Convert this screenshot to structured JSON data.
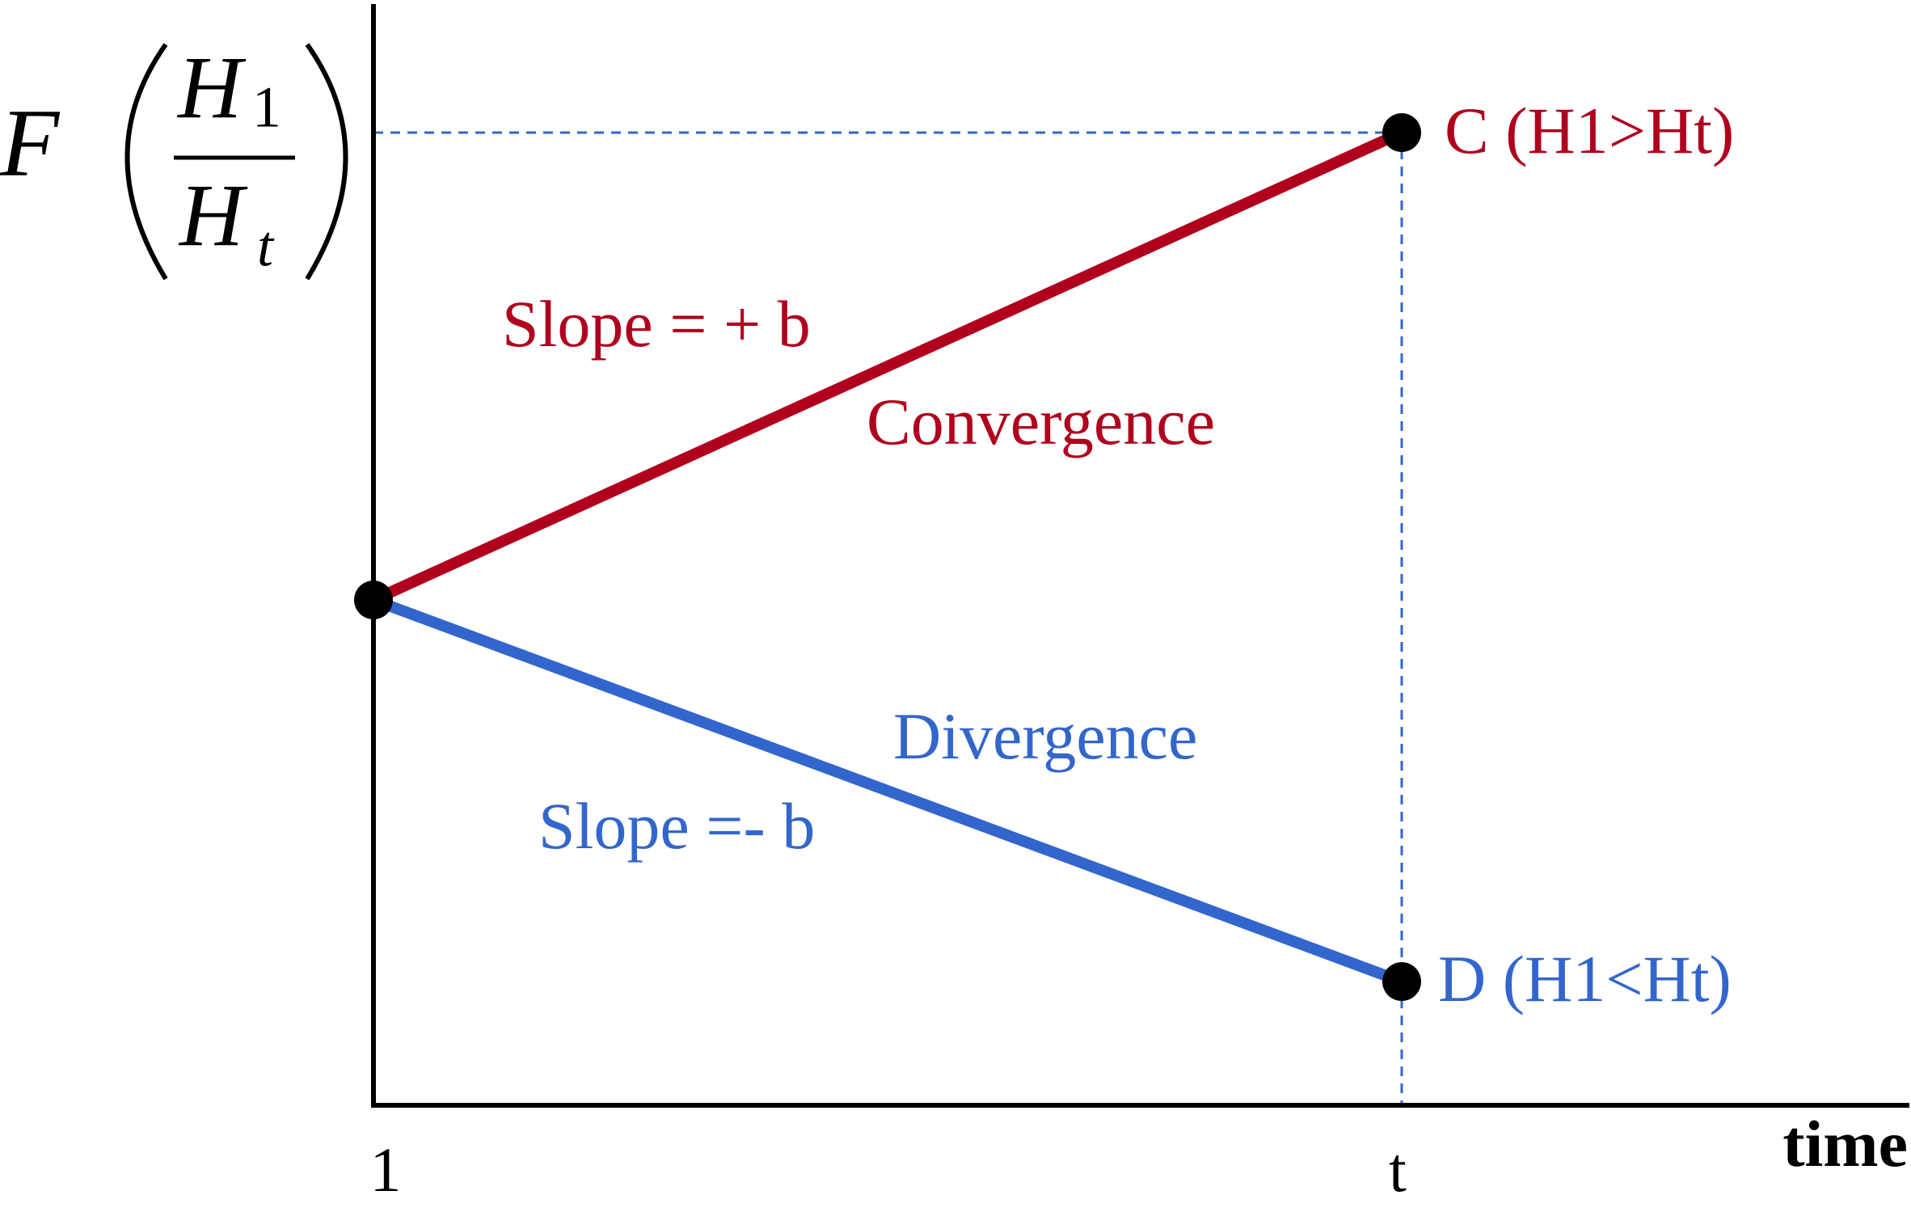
{
  "axes": {
    "x_label": "time",
    "x_ticks": [
      "1",
      "t"
    ],
    "y_label": {
      "function": "F",
      "numerator": "H",
      "numerator_sub": "1",
      "denominator": "H",
      "denominator_sub": "t"
    }
  },
  "lines": [
    {
      "slope_label": "Slope = + b",
      "name": "Convergence",
      "end_label": "C (H1>Ht)"
    },
    {
      "slope_label": "Slope =- b",
      "name": "Divergence",
      "end_label": "D (H1<Ht)"
    }
  ]
}
